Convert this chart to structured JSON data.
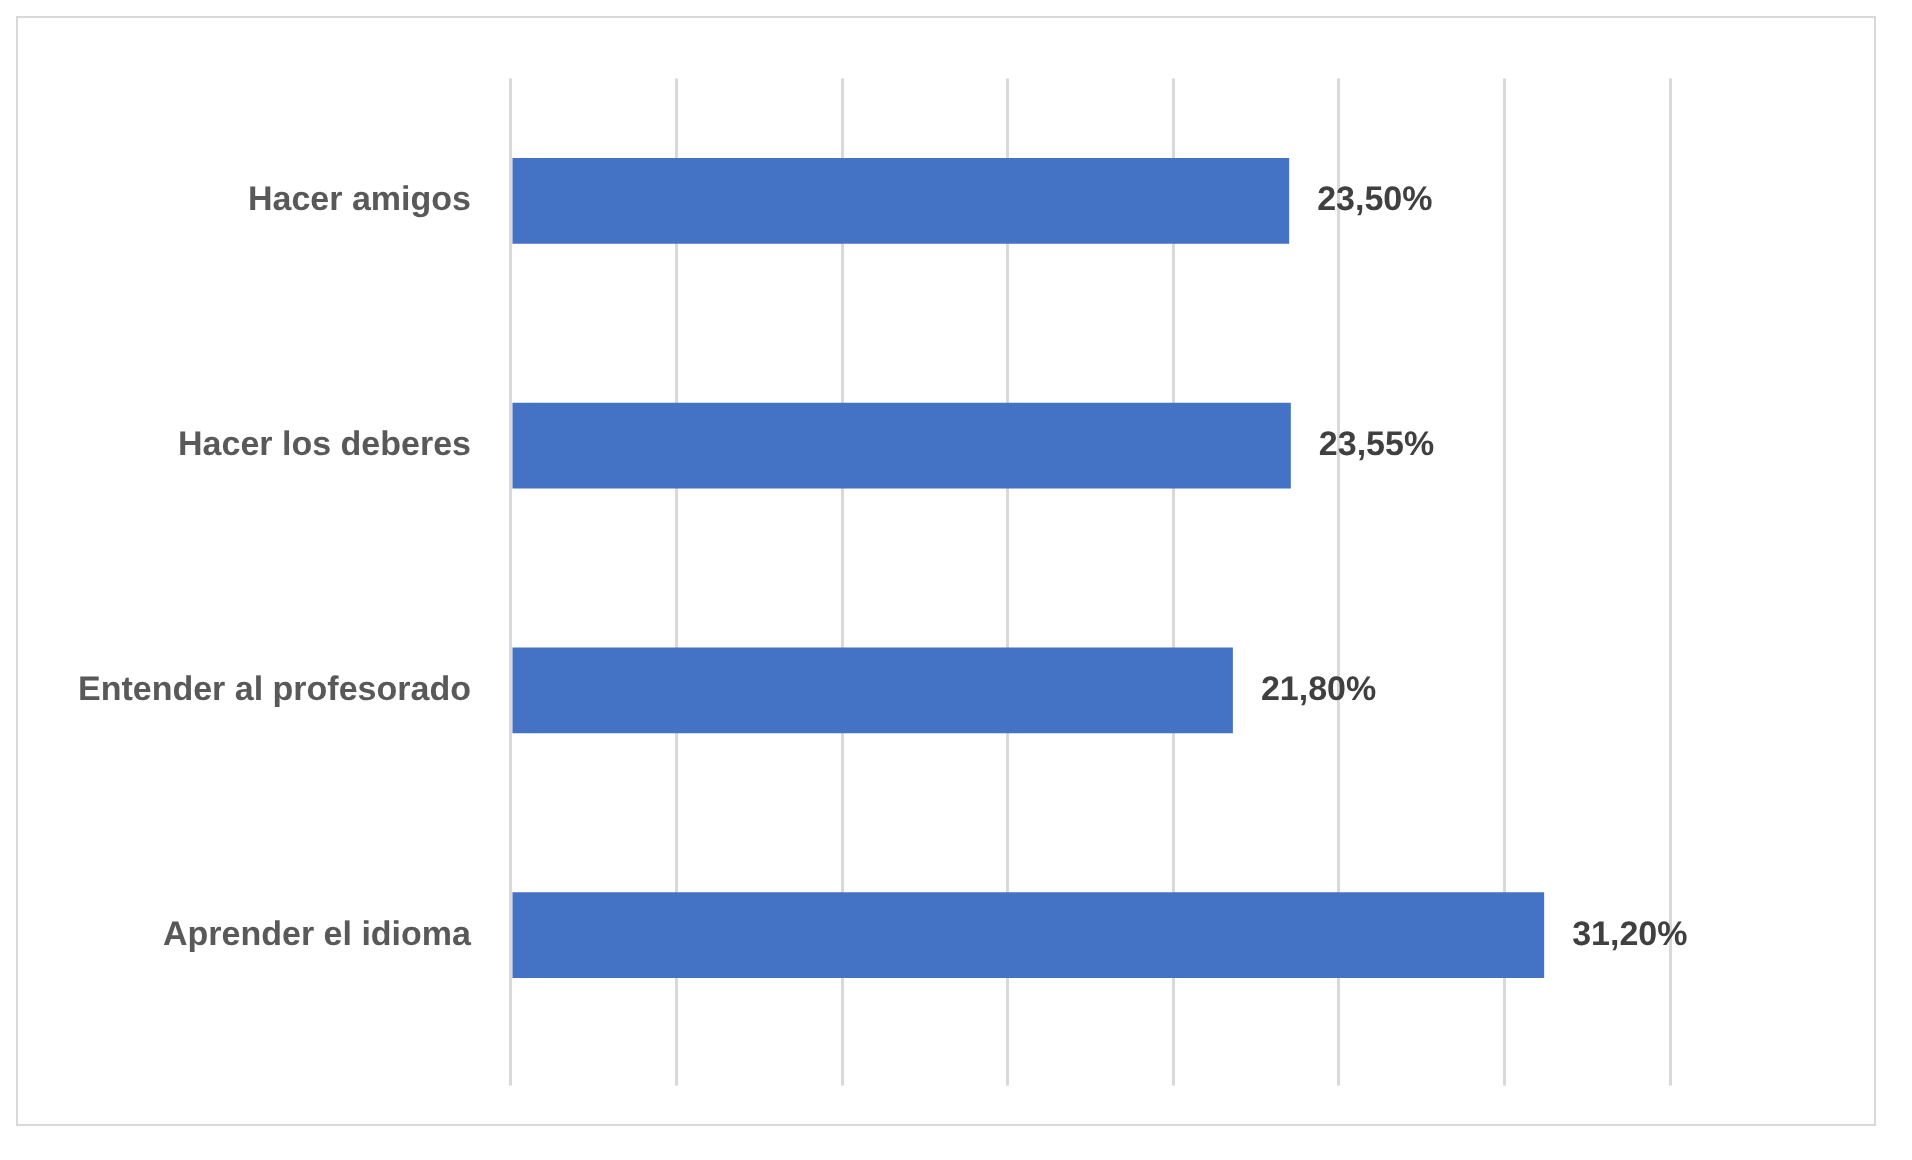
{
  "chart_data": {
    "type": "bar",
    "orientation": "horizontal",
    "categories": [
      "Hacer amigos",
      "Hacer los deberes",
      "Entender al profesorado",
      "Aprender el idioma"
    ],
    "values": [
      23.5,
      23.55,
      21.8,
      31.2
    ],
    "value_labels": [
      "23,50%",
      "23,55%",
      "21,80%",
      "31,20%"
    ],
    "color": "#4472c4",
    "xlim": [
      0,
      35
    ],
    "xticks": [
      {
        "value": 0,
        "label": null
      },
      {
        "value": 5,
        "label": null
      },
      {
        "value": 10,
        "label": null
      },
      {
        "value": 15,
        "label": null
      },
      {
        "value": 20,
        "label": null
      },
      {
        "value": 25,
        "label": null
      },
      {
        "value": 30,
        "label": null
      },
      {
        "value": 35,
        "label": null
      }
    ],
    "tick_labels": "y",
    "grid": "x",
    "legend": false
  }
}
